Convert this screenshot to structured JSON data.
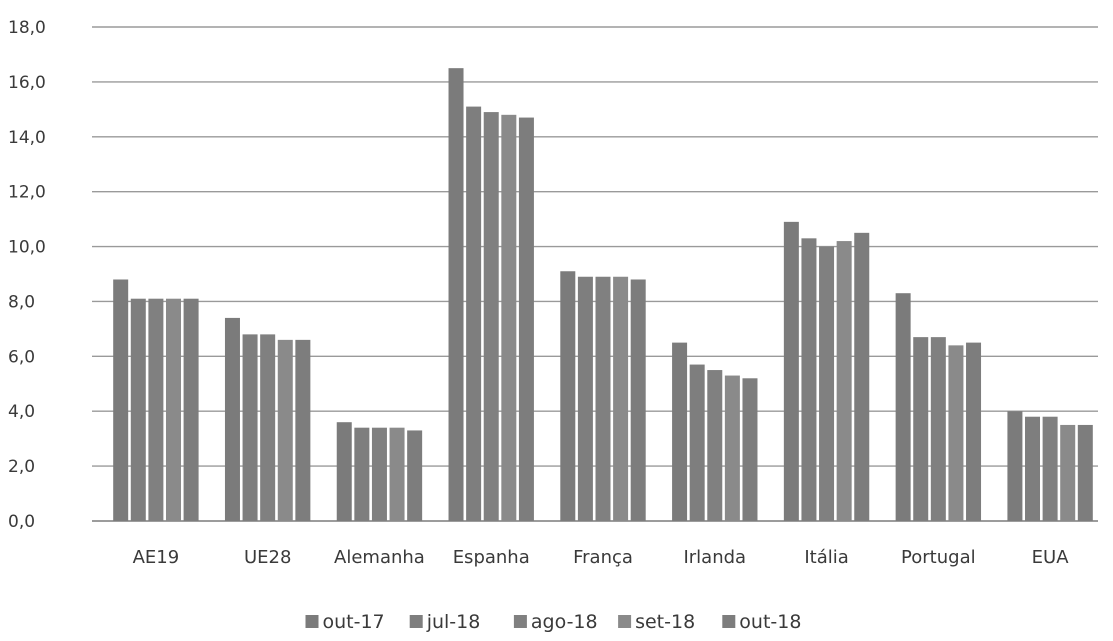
{
  "chart_data": {
    "type": "bar",
    "title": "",
    "xlabel": "",
    "ylabel": "",
    "ylim": [
      0,
      18
    ],
    "yticks": [
      0,
      2,
      4,
      6,
      8,
      10,
      12,
      14,
      16,
      18
    ],
    "ytick_labels": [
      "0,0",
      "2,0",
      "4,0",
      "6,0",
      "8,0",
      "10,0",
      "12,0",
      "14,0",
      "16,0",
      "18,0"
    ],
    "grid": true,
    "legend_position": "bottom",
    "categories": [
      "AE19",
      "UE28",
      "Alemanha",
      "Espanha",
      "França",
      "Irlanda",
      "Itália",
      "Portugal",
      "EUA"
    ],
    "series": [
      {
        "name": "out-17",
        "color": "#7b7b7b",
        "values": [
          8.8,
          7.4,
          3.6,
          16.5,
          9.1,
          6.5,
          10.9,
          8.3,
          4.0
        ]
      },
      {
        "name": "jul-18",
        "color": "#7e7e7e",
        "values": [
          8.1,
          6.8,
          3.4,
          15.1,
          8.9,
          5.7,
          10.3,
          6.7,
          3.8
        ]
      },
      {
        "name": "ago-18",
        "color": "#808080",
        "values": [
          8.1,
          6.8,
          3.4,
          14.9,
          8.9,
          5.5,
          10.0,
          6.7,
          3.8
        ]
      },
      {
        "name": "set-18",
        "color": "#8a8a8a",
        "values": [
          8.1,
          6.6,
          3.4,
          14.8,
          8.9,
          5.3,
          10.2,
          6.4,
          3.5
        ]
      },
      {
        "name": "out-18",
        "color": "#7d7d7d",
        "values": [
          8.1,
          6.6,
          3.3,
          14.7,
          8.8,
          5.2,
          10.5,
          6.5,
          3.5
        ]
      }
    ]
  }
}
